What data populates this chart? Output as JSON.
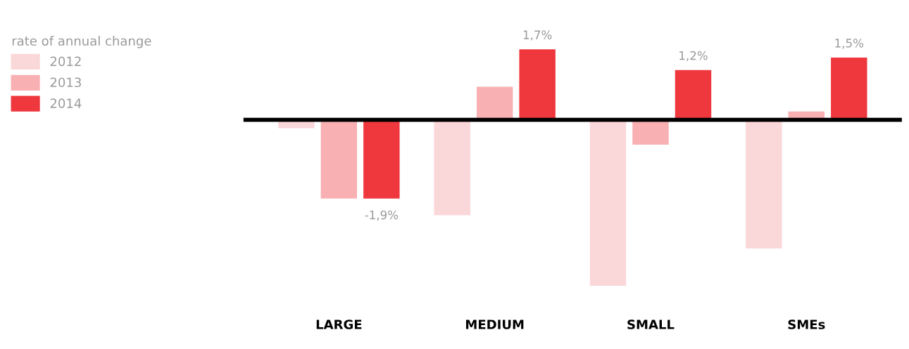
{
  "chart_data": {
    "type": "bar",
    "categories": [
      "LARGE",
      "MEDIUM",
      "SMALL",
      "SMEs"
    ],
    "legend_title": "rate of annual change",
    "legend": "top left",
    "series": [
      {
        "name": "2012",
        "color": "#fad7d9",
        "values": [
          -0.2,
          -2.3,
          -4.0,
          -3.1
        ]
      },
      {
        "name": "2013",
        "color": "#f8b0b3",
        "values": [
          -1.9,
          0.8,
          -0.6,
          0.2
        ]
      },
      {
        "name": "2014",
        "color": "#ef373e",
        "values": [
          -1.9,
          1.7,
          1.2,
          1.5
        ],
        "value_labels": [
          "-1,9%",
          "1,7%",
          "1,2%",
          "1,5%"
        ]
      }
    ]
  }
}
